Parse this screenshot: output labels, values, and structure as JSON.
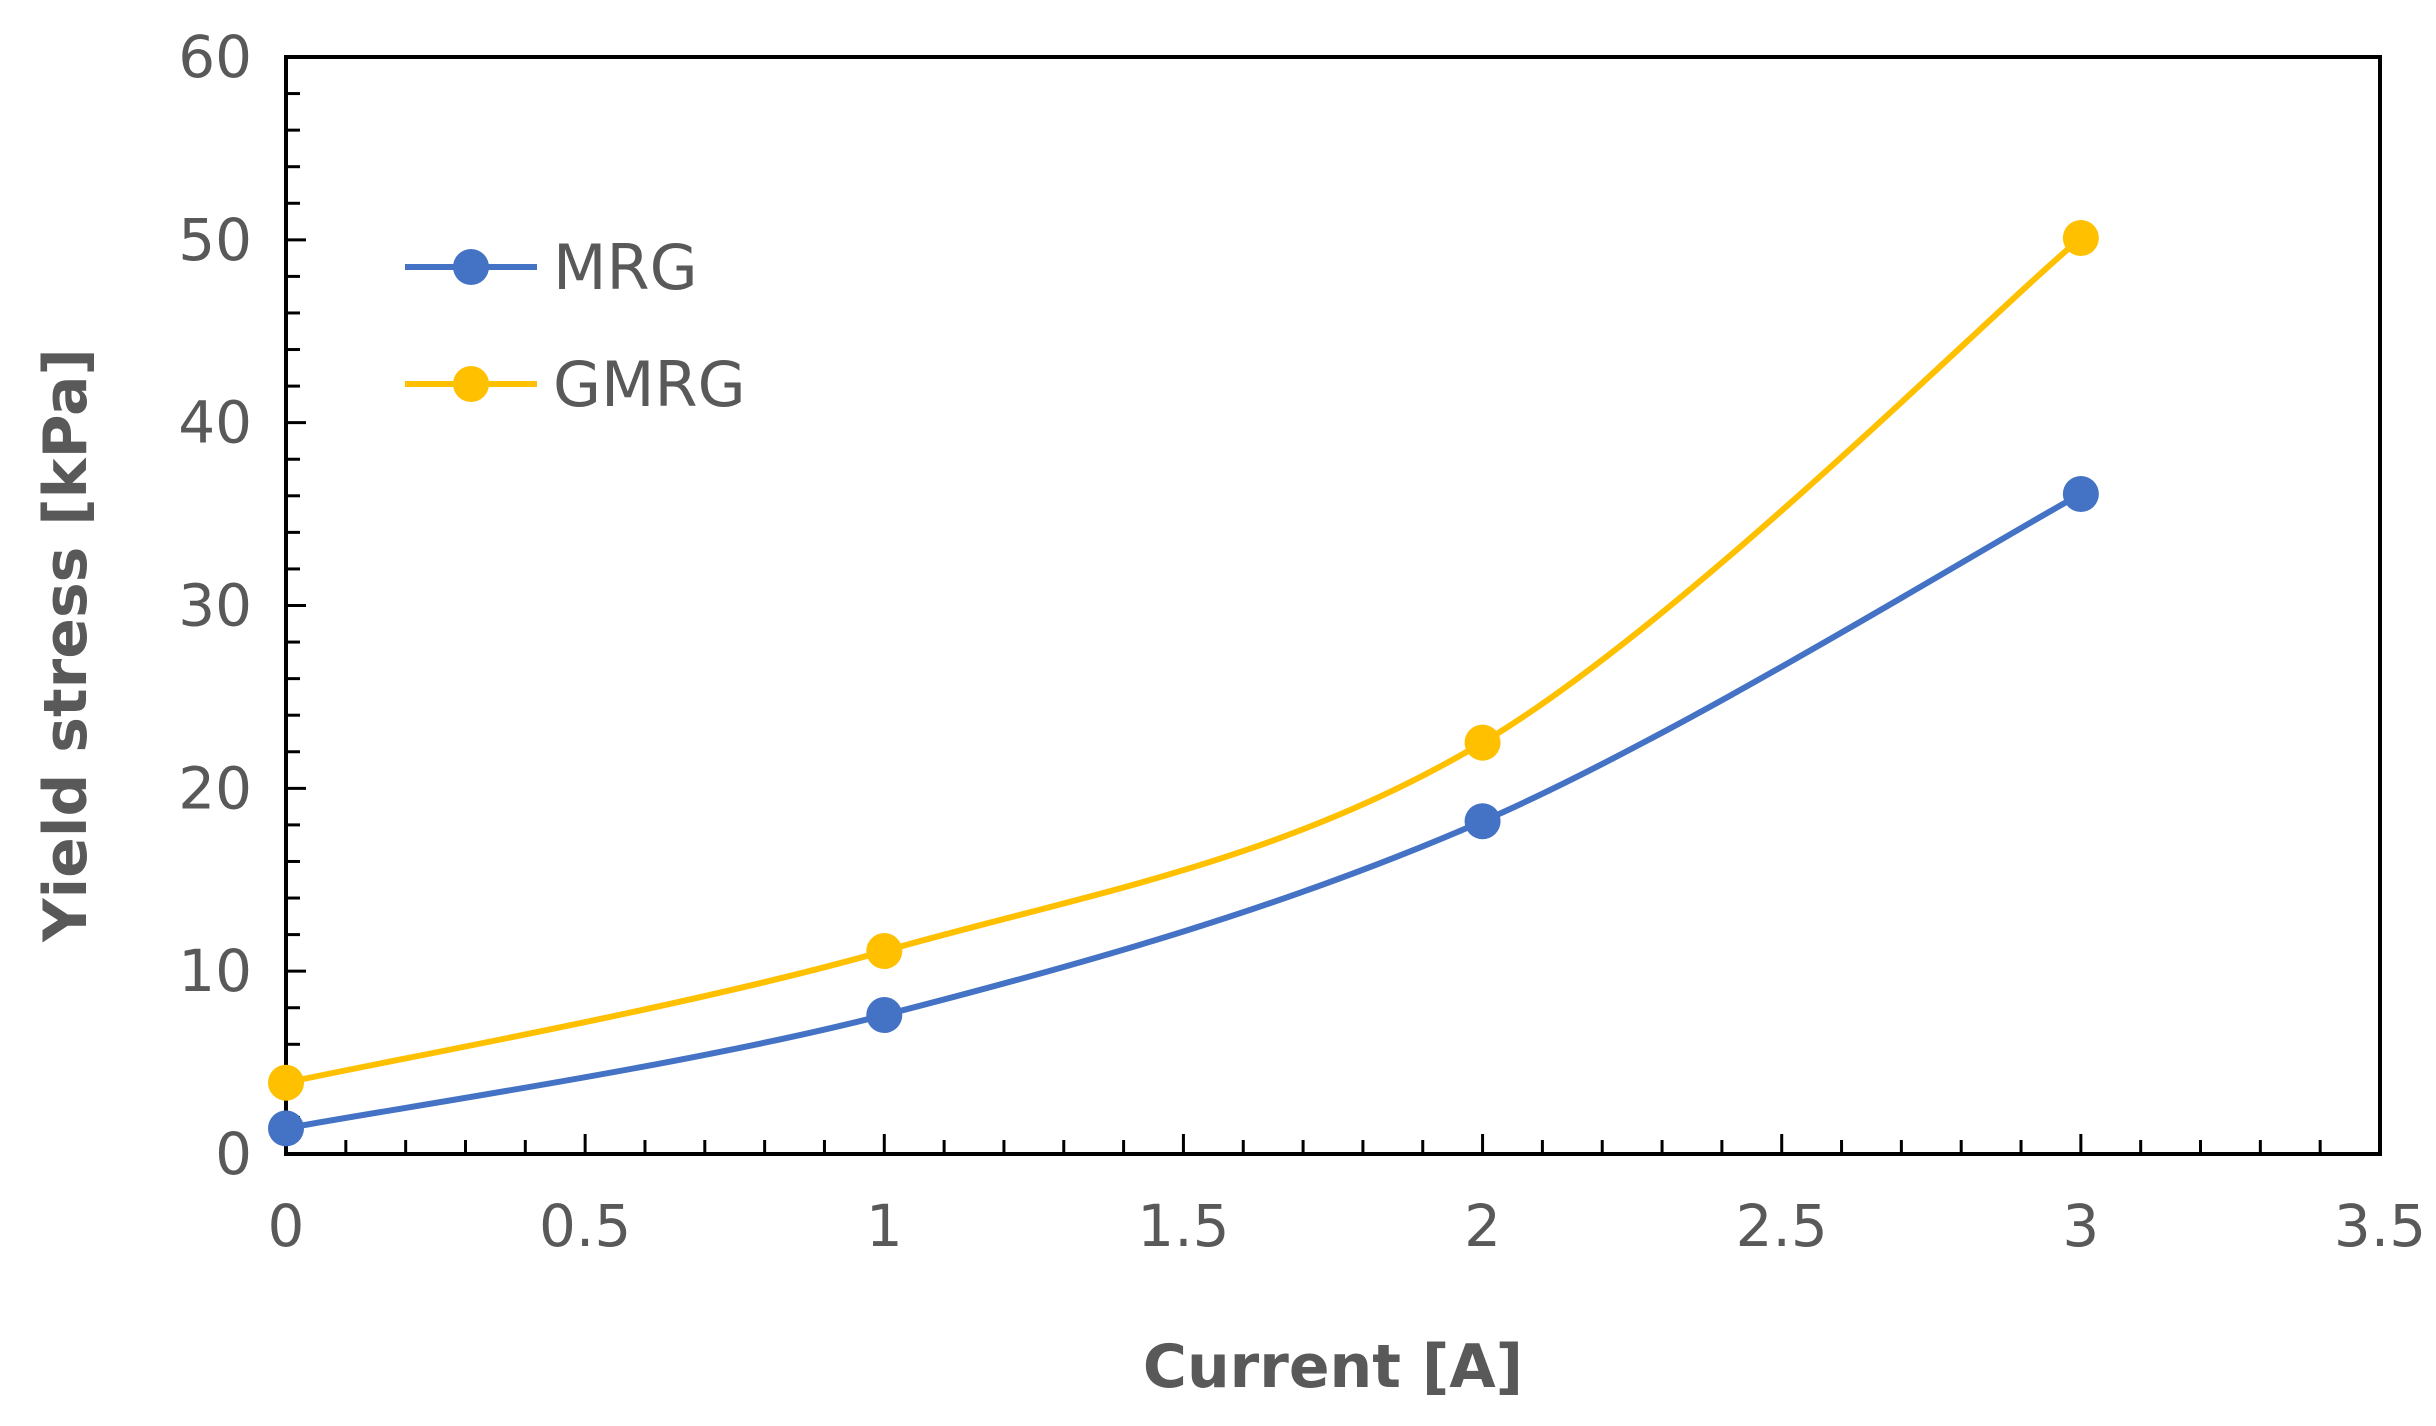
{
  "chart_data": {
    "type": "line",
    "title": "",
    "xlabel": "Current [A]",
    "ylabel": "Yield stress [kPa]",
    "xlim": [
      0,
      3.5
    ],
    "ylim": [
      0,
      60
    ],
    "x_ticks": [
      0,
      0.5,
      1,
      1.5,
      2,
      2.5,
      3,
      3.5
    ],
    "x_tick_labels": [
      "0",
      "0.5",
      "1",
      "1.5",
      "2",
      "2.5",
      "3",
      "3.5"
    ],
    "y_ticks": [
      0,
      10,
      20,
      30,
      40,
      50,
      60
    ],
    "y_tick_labels": [
      "0",
      "10",
      "20",
      "30",
      "40",
      "50",
      "60"
    ],
    "x_minor_step": 0.1,
    "y_minor_step": 2,
    "grid": false,
    "smoothed": true,
    "legend_position": "top-left",
    "series": [
      {
        "name": "MRG",
        "color": "#4472C4",
        "x": [
          0,
          1,
          2,
          3
        ],
        "values": [
          1.4,
          7.6,
          18.2,
          36.1
        ]
      },
      {
        "name": "GMRG",
        "color": "#FFC000",
        "x": [
          0,
          1,
          2,
          3
        ],
        "values": [
          3.9,
          11.1,
          22.5,
          50.1
        ]
      }
    ]
  }
}
